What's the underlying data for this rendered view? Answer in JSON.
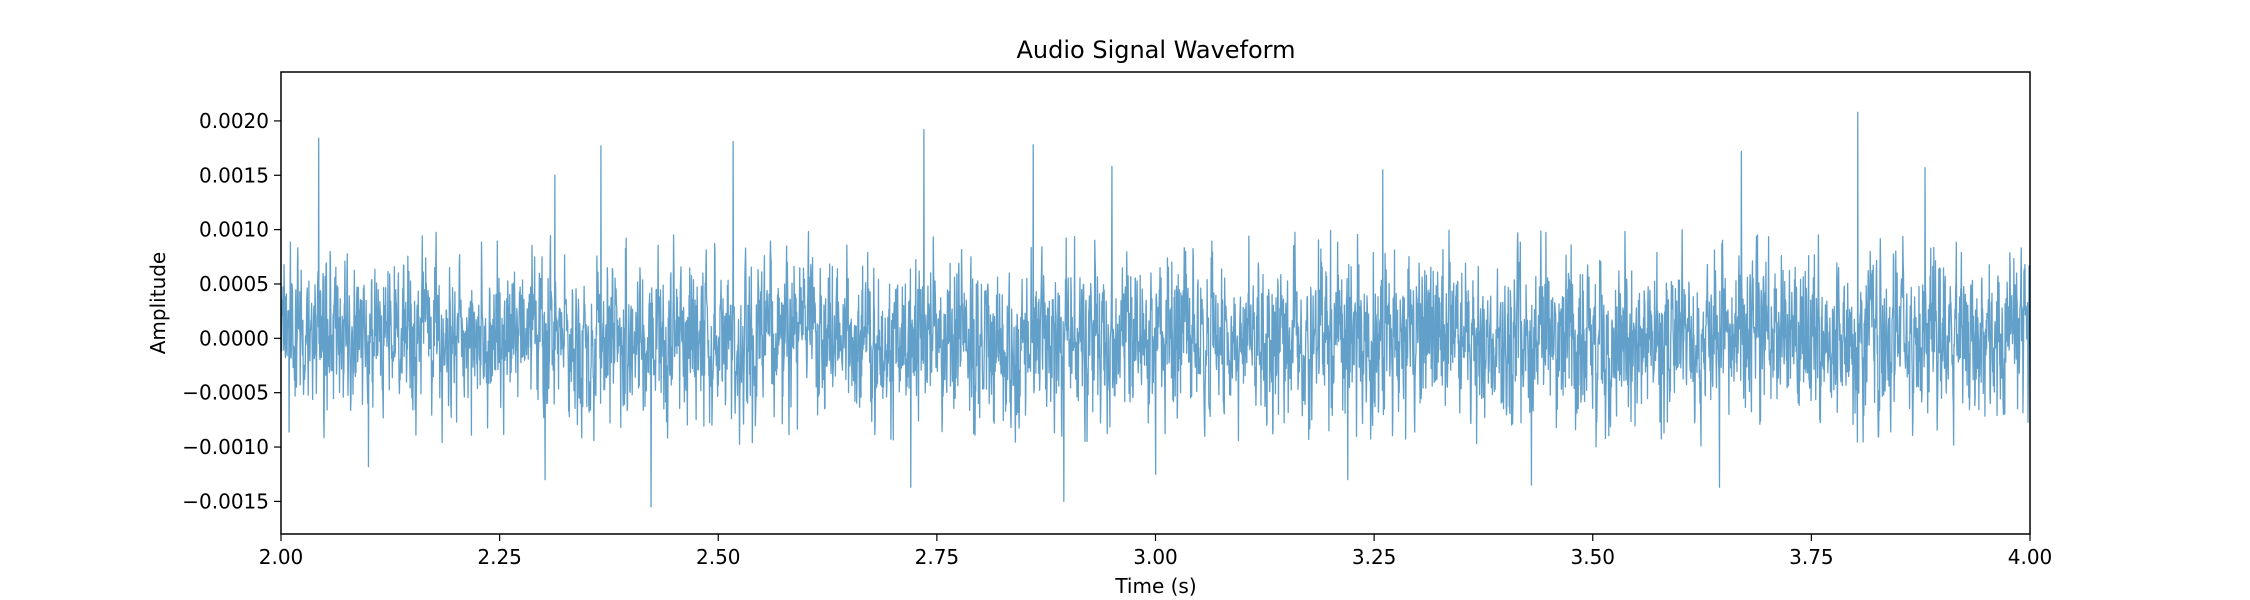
{
  "chart_data": {
    "type": "line",
    "title": "Audio Signal Waveform",
    "xlabel": "Time (s)",
    "ylabel": "Amplitude",
    "xlim": [
      2.0,
      4.0
    ],
    "ylim": [
      -0.0018,
      0.00245
    ],
    "x_ticks": [
      2.0,
      2.25,
      2.5,
      2.75,
      3.0,
      3.25,
      3.5,
      3.75,
      4.0
    ],
    "x_tick_labels": [
      "2.00",
      "2.25",
      "2.50",
      "2.75",
      "3.00",
      "3.25",
      "3.50",
      "3.75",
      "4.00"
    ],
    "y_ticks": [
      -0.0015,
      -0.001,
      -0.0005,
      0.0,
      0.0005,
      0.001,
      0.0015,
      0.002
    ],
    "y_tick_labels": [
      "−0.0015",
      "−0.0010",
      "−0.0005",
      "0.0000",
      "0.0005",
      "0.0010",
      "0.0015",
      "0.0020"
    ],
    "grid": false,
    "line_color": "#1f77b4",
    "line_alpha": 0.7,
    "series": [
      {
        "noise_envelope": {
          "typical_abs_amplitude": 0.00035,
          "typical_peak": 0.0008,
          "ymin_observed": -0.00155,
          "ymax_observed": 0.00208
        },
        "peaks": [
          {
            "x": 2.043,
            "y": 0.00184
          },
          {
            "x": 2.366,
            "y": 0.00177
          },
          {
            "x": 2.517,
            "y": 0.00181
          },
          {
            "x": 2.735,
            "y": 0.00192
          },
          {
            "x": 2.86,
            "y": 0.00178
          },
          {
            "x": 3.803,
            "y": 0.00208
          },
          {
            "x": 3.67,
            "y": 0.00172
          },
          {
            "x": 2.313,
            "y": 0.0015
          },
          {
            "x": 2.95,
            "y": 0.00158
          },
          {
            "x": 3.26,
            "y": 0.00155
          },
          {
            "x": 3.88,
            "y": 0.00157
          },
          {
            "x": 2.423,
            "y": -0.00155
          },
          {
            "x": 2.895,
            "y": -0.0015
          },
          {
            "x": 2.72,
            "y": -0.00137
          },
          {
            "x": 3.645,
            "y": -0.00137
          },
          {
            "x": 3.43,
            "y": -0.00135
          },
          {
            "x": 2.302,
            "y": -0.0013
          },
          {
            "x": 3.22,
            "y": -0.0013
          },
          {
            "x": 2.1,
            "y": -0.00118
          },
          {
            "x": 3.0,
            "y": -0.00125
          }
        ]
      }
    ]
  }
}
